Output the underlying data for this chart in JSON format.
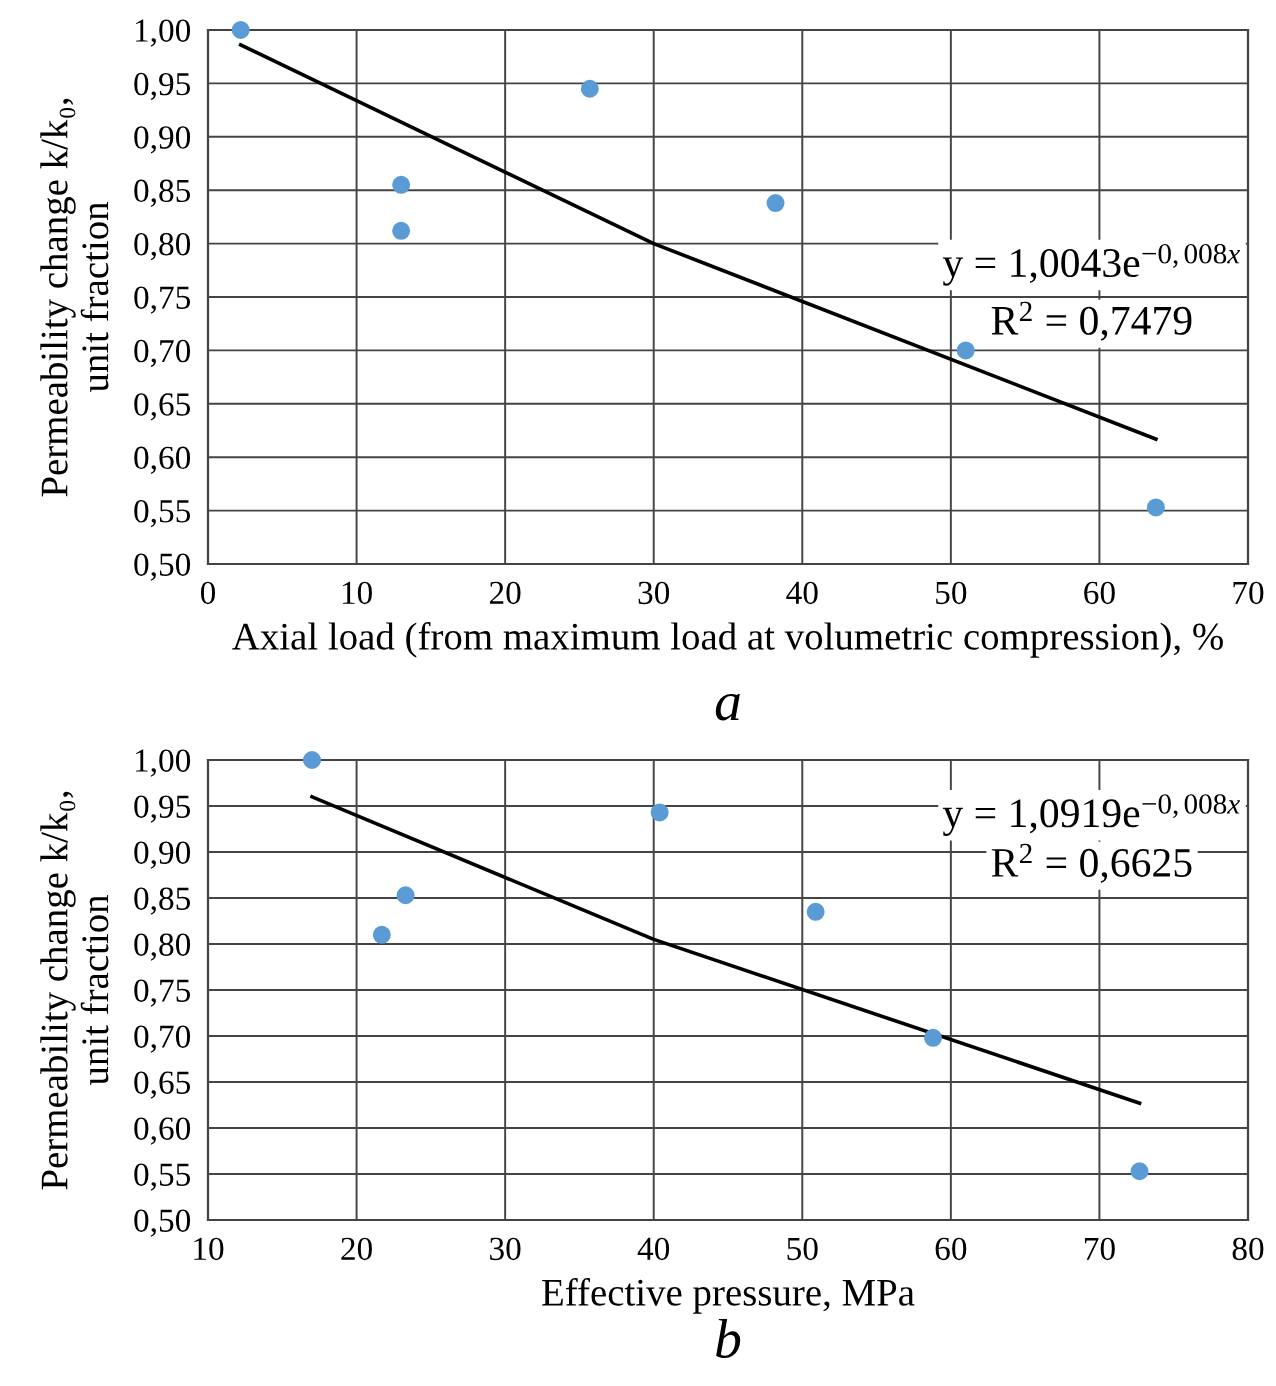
{
  "chart_data": [
    {
      "type": "scatter",
      "xlabel": "Axial load (from maximum load at volumetric compression), %",
      "ylabel": "Permeability change k/k₀,\nunit fraction",
      "series": [
        {
          "marker": "circle",
          "color": "#5b9bd5",
          "x": [
            2.2,
            13,
            13,
            25.7,
            38.2,
            51,
            63.8
          ],
          "values": [
            1.0,
            0.855,
            0.812,
            0.945,
            0.838,
            0.7,
            0.553
          ]
        },
        {
          "type": "line",
          "color": "#000000",
          "x": [
            2.2,
            30,
            63.8
          ],
          "values": [
            0.986,
            0.8,
            0.617
          ]
        }
      ],
      "xlim": [
        0,
        70
      ],
      "xticks": [
        0,
        10,
        20,
        30,
        40,
        50,
        60,
        70
      ],
      "ylim": [
        0.5,
        1.0
      ],
      "yticks": [
        {
          "value": 0.5,
          "label": "0,50"
        },
        {
          "value": 0.55,
          "label": "0,55"
        },
        {
          "value": 0.6,
          "label": "0,60"
        },
        {
          "value": 0.65,
          "label": "0,65"
        },
        {
          "value": 0.7,
          "label": "0,70"
        },
        {
          "value": 0.75,
          "label": "0,75"
        },
        {
          "value": 0.8,
          "label": "0,80"
        },
        {
          "value": 0.85,
          "label": "0,85"
        },
        {
          "value": 0.9,
          "label": "0,90"
        },
        {
          "value": 0.95,
          "label": "0,95"
        },
        {
          "value": 1.0,
          "label": "1,00"
        }
      ],
      "grid": true,
      "annotations": [
        "y = 1,0043e$^{−0,008x}$",
        "R$^{2}$ = 0,7479",
        "a"
      ]
    },
    {
      "type": "scatter",
      "xlabel": "Effective pressure, MPa",
      "ylabel": "Permeability change k/k₀,\nunit fraction",
      "series": [
        {
          "marker": "circle",
          "color": "#5b9bd5",
          "x": [
            17,
            21.7,
            23.3,
            40.4,
            50.9,
            58.8,
            72.7
          ],
          "values": [
            1.0,
            0.81,
            0.853,
            0.943,
            0.835,
            0.698,
            0.553
          ]
        },
        {
          "type": "line",
          "color": "#000000",
          "x": [
            17,
            40,
            72.7
          ],
          "values": [
            0.96,
            0.805,
            0.627
          ]
        }
      ],
      "xlim": [
        10,
        80
      ],
      "xticks": [
        10,
        20,
        30,
        40,
        50,
        60,
        70,
        80
      ],
      "ylim": [
        0.5,
        1.0
      ],
      "yticks": [
        {
          "value": 0.5,
          "label": "0,50"
        },
        {
          "value": 0.55,
          "label": "0,55"
        },
        {
          "value": 0.6,
          "label": "0,60"
        },
        {
          "value": 0.65,
          "label": "0,65"
        },
        {
          "value": 0.7,
          "label": "0,70"
        },
        {
          "value": 0.75,
          "label": "0,75"
        },
        {
          "value": 0.8,
          "label": "0,80"
        },
        {
          "value": 0.85,
          "label": "0,85"
        },
        {
          "value": 0.9,
          "label": "0,90"
        },
        {
          "value": 0.95,
          "label": "0,95"
        },
        {
          "value": 1.0,
          "label": "1,00"
        }
      ],
      "grid": true,
      "annotations": [
        "y = 1,0919e$^{−0,008x}$",
        "R$^{2}$ = 0,6625",
        "b"
      ]
    }
  ]
}
